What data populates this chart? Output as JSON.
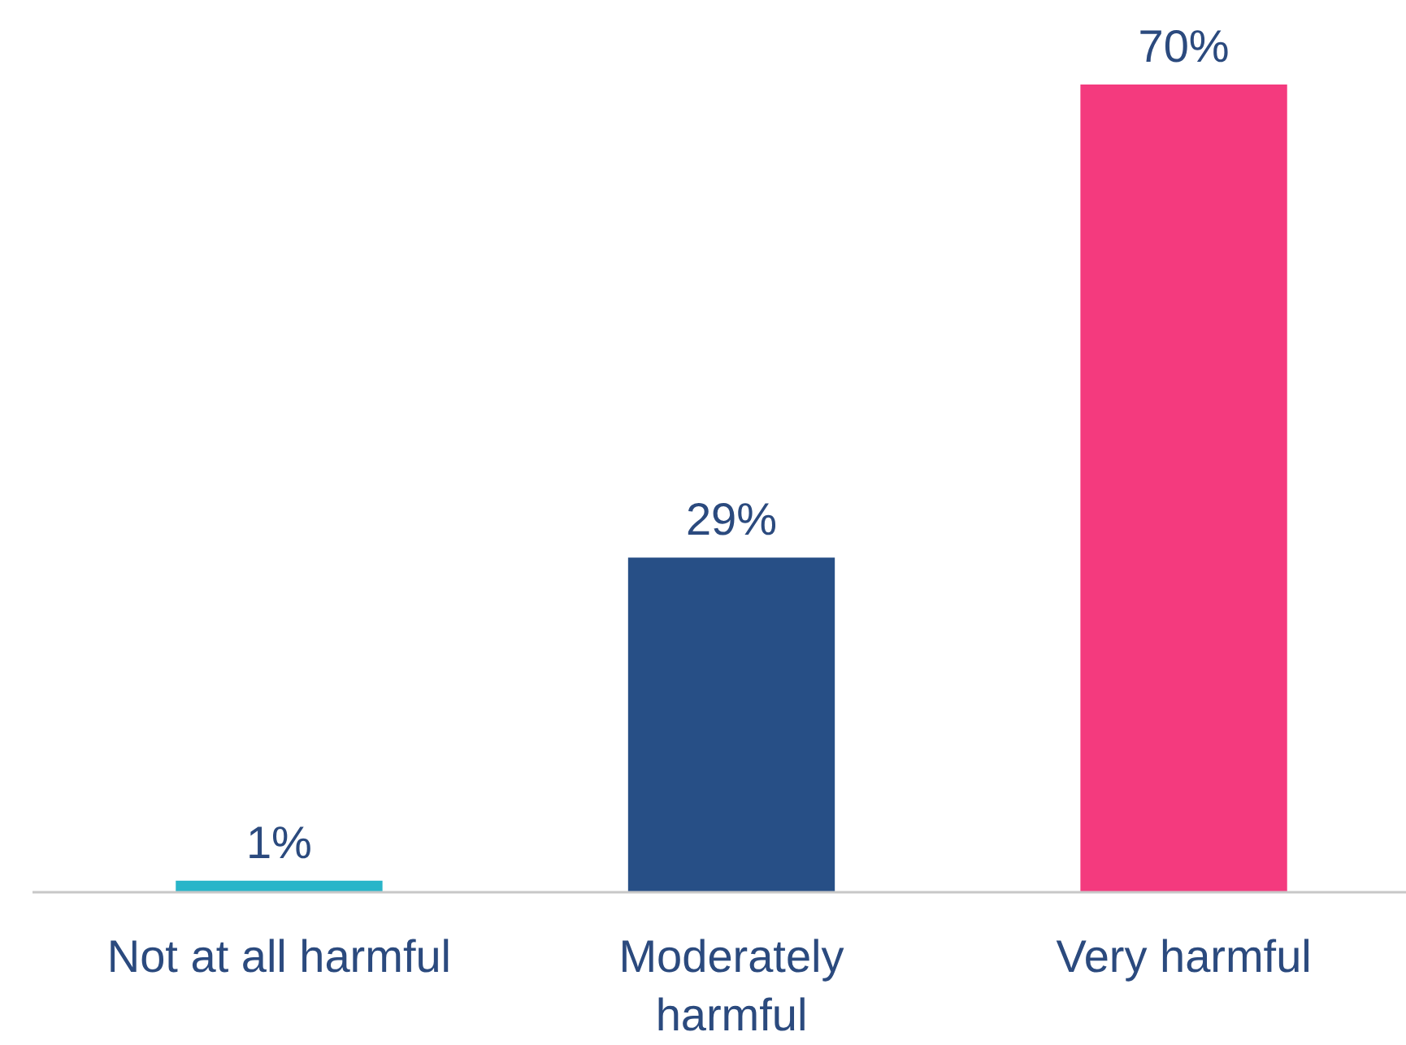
{
  "chart_data": {
    "type": "bar",
    "categories": [
      "Not at all harmful",
      "Moderately harmful",
      "Very harmful"
    ],
    "values": [
      1,
      29,
      70
    ],
    "colors": [
      "#29b5c9",
      "#274f86",
      "#f43a7e"
    ],
    "value_labels": [
      "1%",
      "29%",
      "70%"
    ]
  }
}
